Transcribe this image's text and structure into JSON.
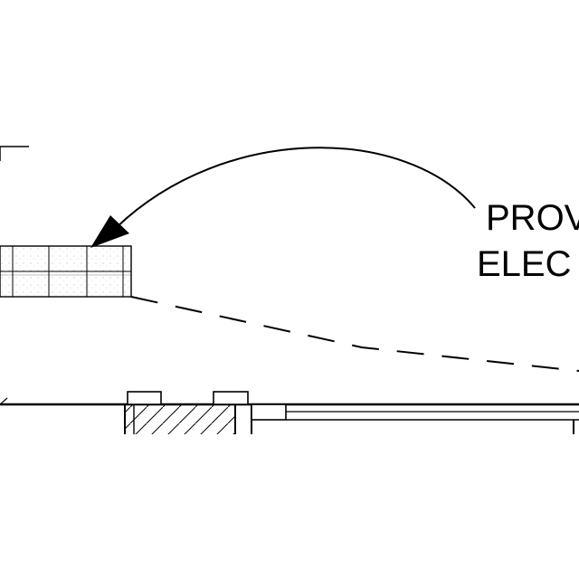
{
  "drawing": {
    "annotation": {
      "line1": "PROV",
      "line2": "ELEC"
    },
    "colors": {
      "ink": "#000000",
      "paper": "#ffffff",
      "fill_dots": "#bdbdbd"
    }
  }
}
